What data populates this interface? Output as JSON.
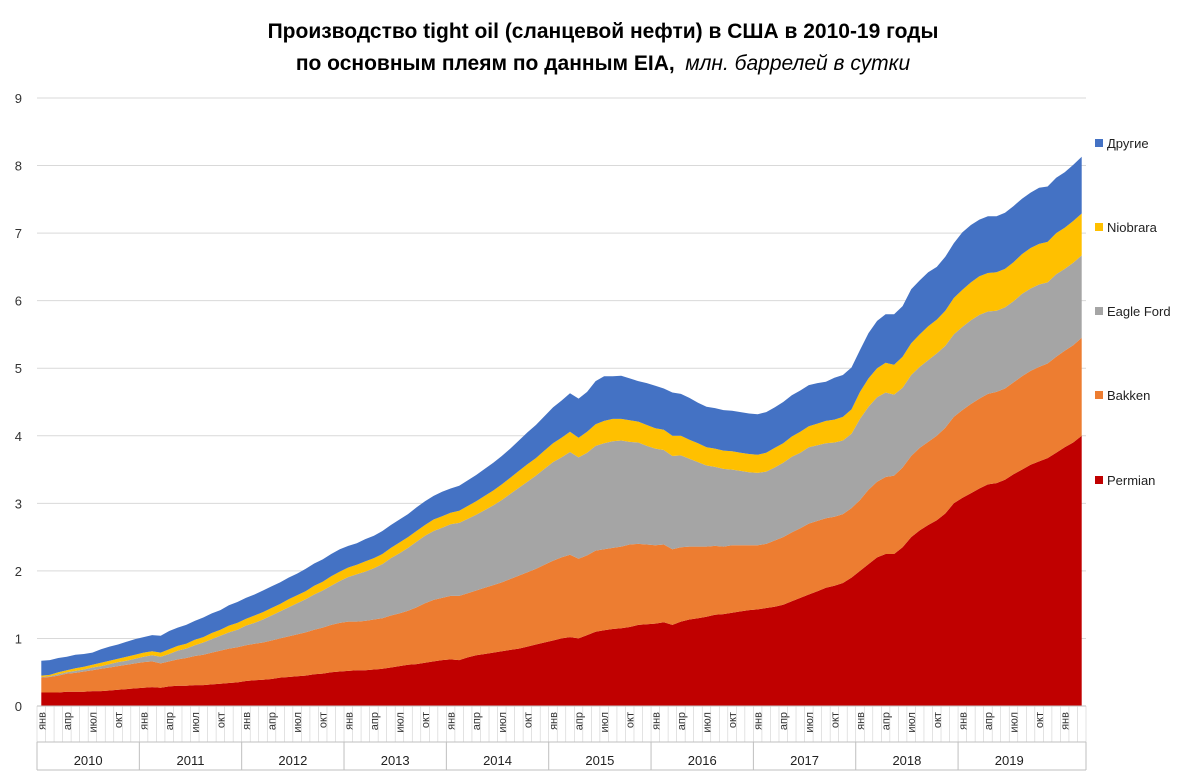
{
  "chart_data": {
    "type": "area",
    "stacked": true,
    "title_line1": "Производство tight oil (сланцевой нефти) в США в 2010-19 годы",
    "title_line2_bold": "по основным плеям по данным EIA,",
    "title_line2_italic": "млн. баррелей в сутки",
    "ylim": [
      0,
      9
    ],
    "yticks": [
      "0",
      "1",
      "2",
      "3",
      "4",
      "5",
      "6",
      "7",
      "8",
      "9"
    ],
    "grid": true,
    "legend_position": "right",
    "month_labels": [
      "янв",
      "апр",
      "июл",
      "окт"
    ],
    "years": [
      "2010",
      "2011",
      "2012",
      "2013",
      "2014",
      "2015",
      "2016",
      "2017",
      "2018",
      "2019"
    ],
    "x_start": "2010-01",
    "x_end": "2019-10",
    "series": [
      {
        "name": "Permian",
        "color": "#C00000",
        "values": [
          0.2,
          0.2,
          0.2,
          0.21,
          0.21,
          0.21,
          0.22,
          0.22,
          0.23,
          0.24,
          0.25,
          0.26,
          0.27,
          0.28,
          0.27,
          0.29,
          0.3,
          0.3,
          0.31,
          0.31,
          0.32,
          0.33,
          0.34,
          0.35,
          0.37,
          0.38,
          0.39,
          0.4,
          0.42,
          0.43,
          0.44,
          0.45,
          0.47,
          0.48,
          0.5,
          0.51,
          0.52,
          0.53,
          0.53,
          0.54,
          0.55,
          0.57,
          0.59,
          0.61,
          0.62,
          0.64,
          0.66,
          0.68,
          0.69,
          0.68,
          0.72,
          0.75,
          0.77,
          0.79,
          0.81,
          0.83,
          0.85,
          0.88,
          0.91,
          0.94,
          0.97,
          1.0,
          1.02,
          1.0,
          1.05,
          1.1,
          1.12,
          1.14,
          1.15,
          1.17,
          1.2,
          1.21,
          1.22,
          1.24,
          1.2,
          1.25,
          1.28,
          1.3,
          1.32,
          1.35,
          1.36,
          1.38,
          1.4,
          1.42,
          1.43,
          1.45,
          1.47,
          1.5,
          1.55,
          1.6,
          1.65,
          1.7,
          1.75,
          1.78,
          1.82,
          1.9,
          2.0,
          2.1,
          2.2,
          2.25,
          2.25,
          2.35,
          2.5,
          2.6,
          2.68,
          2.75,
          2.85,
          3.0,
          3.08,
          3.15,
          3.22,
          3.28,
          3.3,
          3.35,
          3.43,
          3.5,
          3.57,
          3.62,
          3.67,
          3.75,
          3.83,
          3.9,
          4.0
        ]
      },
      {
        "name": "Bakken",
        "color": "#ED7D31",
        "values": [
          0.22,
          0.23,
          0.25,
          0.27,
          0.28,
          0.3,
          0.31,
          0.33,
          0.34,
          0.35,
          0.36,
          0.37,
          0.38,
          0.38,
          0.36,
          0.37,
          0.39,
          0.41,
          0.43,
          0.45,
          0.47,
          0.49,
          0.51,
          0.52,
          0.53,
          0.54,
          0.55,
          0.57,
          0.58,
          0.6,
          0.62,
          0.64,
          0.66,
          0.68,
          0.7,
          0.72,
          0.73,
          0.72,
          0.73,
          0.74,
          0.75,
          0.77,
          0.78,
          0.8,
          0.84,
          0.88,
          0.91,
          0.92,
          0.94,
          0.95,
          0.95,
          0.96,
          0.98,
          1.0,
          1.02,
          1.05,
          1.08,
          1.1,
          1.12,
          1.15,
          1.18,
          1.2,
          1.22,
          1.18,
          1.18,
          1.2,
          1.2,
          1.2,
          1.21,
          1.22,
          1.2,
          1.18,
          1.16,
          1.15,
          1.12,
          1.1,
          1.08,
          1.06,
          1.04,
          1.02,
          1.0,
          1.0,
          0.98,
          0.96,
          0.95,
          0.95,
          0.98,
          1.0,
          1.02,
          1.03,
          1.05,
          1.04,
          1.03,
          1.02,
          1.02,
          1.03,
          1.05,
          1.1,
          1.12,
          1.14,
          1.16,
          1.18,
          1.2,
          1.22,
          1.23,
          1.25,
          1.27,
          1.28,
          1.3,
          1.32,
          1.33,
          1.34,
          1.35,
          1.35,
          1.36,
          1.38,
          1.39,
          1.4,
          1.4,
          1.42,
          1.43,
          1.44,
          1.45
        ]
      },
      {
        "name": "Eagle Ford",
        "color": "#A5A5A5",
        "values": [
          0.01,
          0.01,
          0.02,
          0.02,
          0.03,
          0.03,
          0.04,
          0.04,
          0.05,
          0.06,
          0.06,
          0.07,
          0.08,
          0.09,
          0.1,
          0.11,
          0.13,
          0.14,
          0.16,
          0.18,
          0.2,
          0.22,
          0.24,
          0.26,
          0.29,
          0.31,
          0.34,
          0.37,
          0.4,
          0.43,
          0.46,
          0.49,
          0.52,
          0.55,
          0.58,
          0.62,
          0.66,
          0.7,
          0.73,
          0.76,
          0.8,
          0.85,
          0.89,
          0.93,
          0.97,
          1.0,
          1.02,
          1.04,
          1.06,
          1.08,
          1.1,
          1.12,
          1.15,
          1.18,
          1.22,
          1.26,
          1.3,
          1.34,
          1.38,
          1.42,
          1.46,
          1.48,
          1.52,
          1.5,
          1.52,
          1.55,
          1.57,
          1.58,
          1.57,
          1.52,
          1.5,
          1.46,
          1.43,
          1.4,
          1.38,
          1.36,
          1.3,
          1.25,
          1.2,
          1.17,
          1.15,
          1.12,
          1.1,
          1.08,
          1.07,
          1.07,
          1.08,
          1.1,
          1.12,
          1.12,
          1.13,
          1.12,
          1.11,
          1.1,
          1.09,
          1.1,
          1.2,
          1.23,
          1.25,
          1.25,
          1.2,
          1.18,
          1.2,
          1.2,
          1.21,
          1.22,
          1.21,
          1.22,
          1.23,
          1.24,
          1.24,
          1.22,
          1.2,
          1.2,
          1.2,
          1.22,
          1.22,
          1.22,
          1.2,
          1.22,
          1.21,
          1.22,
          1.22
        ]
      },
      {
        "name": "Niobrara",
        "color": "#FFC000",
        "values": [
          0.02,
          0.02,
          0.03,
          0.03,
          0.04,
          0.04,
          0.04,
          0.05,
          0.05,
          0.05,
          0.06,
          0.06,
          0.06,
          0.06,
          0.06,
          0.07,
          0.07,
          0.07,
          0.08,
          0.08,
          0.09,
          0.09,
          0.1,
          0.1,
          0.1,
          0.11,
          0.11,
          0.11,
          0.11,
          0.12,
          0.12,
          0.12,
          0.13,
          0.13,
          0.14,
          0.14,
          0.14,
          0.14,
          0.15,
          0.15,
          0.15,
          0.15,
          0.16,
          0.16,
          0.16,
          0.16,
          0.17,
          0.17,
          0.17,
          0.18,
          0.19,
          0.2,
          0.21,
          0.22,
          0.23,
          0.24,
          0.25,
          0.26,
          0.26,
          0.27,
          0.28,
          0.29,
          0.3,
          0.29,
          0.31,
          0.32,
          0.33,
          0.33,
          0.32,
          0.32,
          0.31,
          0.31,
          0.3,
          0.3,
          0.3,
          0.29,
          0.28,
          0.28,
          0.27,
          0.27,
          0.27,
          0.27,
          0.27,
          0.27,
          0.27,
          0.28,
          0.29,
          0.29,
          0.3,
          0.31,
          0.31,
          0.32,
          0.33,
          0.34,
          0.35,
          0.36,
          0.4,
          0.42,
          0.43,
          0.44,
          0.44,
          0.46,
          0.47,
          0.48,
          0.5,
          0.5,
          0.52,
          0.54,
          0.55,
          0.56,
          0.57,
          0.57,
          0.57,
          0.57,
          0.58,
          0.59,
          0.6,
          0.6,
          0.6,
          0.61,
          0.61,
          0.62,
          0.62
        ]
      },
      {
        "name": "Другие",
        "color": "#4472C4",
        "values": [
          0.22,
          0.22,
          0.21,
          0.2,
          0.2,
          0.19,
          0.18,
          0.2,
          0.21,
          0.21,
          0.22,
          0.23,
          0.23,
          0.24,
          0.25,
          0.27,
          0.27,
          0.28,
          0.28,
          0.29,
          0.29,
          0.29,
          0.3,
          0.31,
          0.31,
          0.31,
          0.32,
          0.32,
          0.32,
          0.32,
          0.32,
          0.33,
          0.33,
          0.33,
          0.33,
          0.33,
          0.32,
          0.32,
          0.33,
          0.33,
          0.34,
          0.34,
          0.34,
          0.34,
          0.35,
          0.35,
          0.35,
          0.36,
          0.36,
          0.37,
          0.38,
          0.39,
          0.4,
          0.41,
          0.42,
          0.43,
          0.45,
          0.47,
          0.49,
          0.51,
          0.53,
          0.55,
          0.57,
          0.58,
          0.59,
          0.64,
          0.66,
          0.63,
          0.64,
          0.62,
          0.6,
          0.62,
          0.63,
          0.61,
          0.64,
          0.62,
          0.62,
          0.6,
          0.6,
          0.6,
          0.6,
          0.6,
          0.6,
          0.6,
          0.6,
          0.6,
          0.6,
          0.61,
          0.61,
          0.61,
          0.61,
          0.6,
          0.58,
          0.62,
          0.62,
          0.62,
          0.62,
          0.67,
          0.7,
          0.72,
          0.75,
          0.75,
          0.8,
          0.8,
          0.8,
          0.78,
          0.8,
          0.81,
          0.85,
          0.85,
          0.84,
          0.84,
          0.83,
          0.83,
          0.83,
          0.82,
          0.82,
          0.83,
          0.82,
          0.82,
          0.82,
          0.83,
          0.84
        ]
      }
    ]
  }
}
